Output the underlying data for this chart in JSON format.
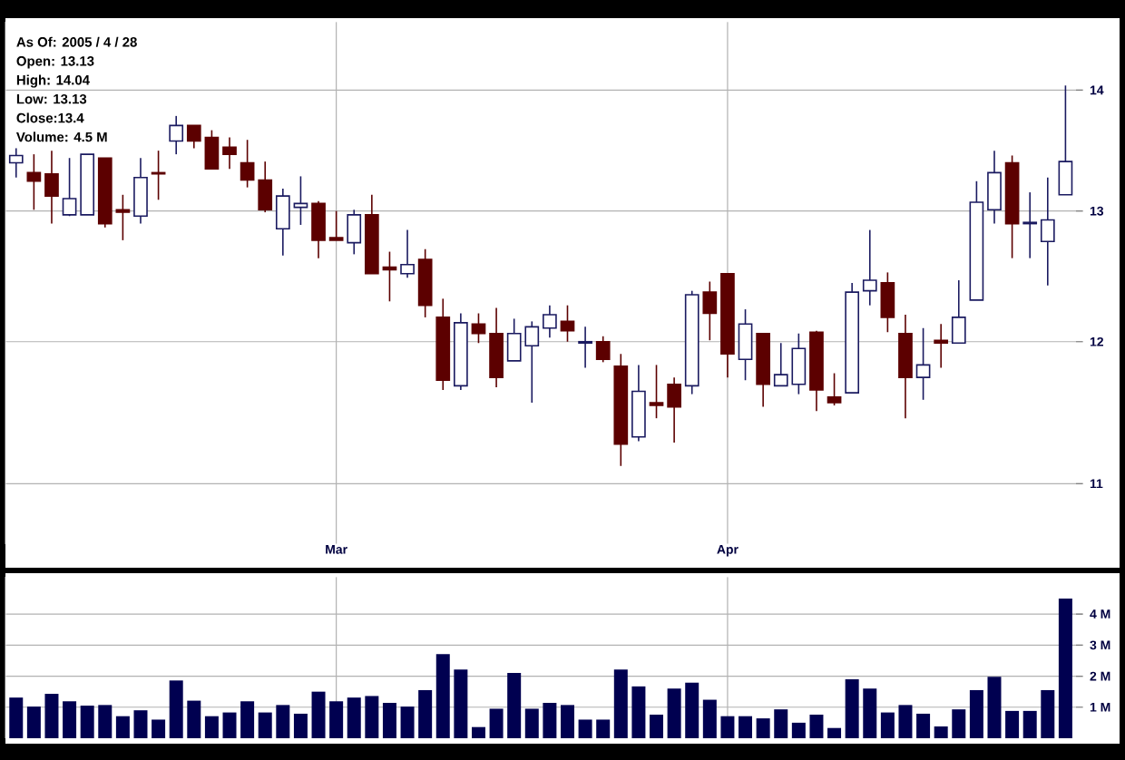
{
  "chart_data": [
    {
      "type": "candlestick",
      "log": true,
      "grid": true,
      "annotations": [
        "As Of: 2005 / 4 / 28",
        "Open: 13.13",
        "High: 14.04",
        "Low: 13.13",
        "Close:13.4",
        "Volume: 4.5 M"
      ],
      "categories": [
        null,
        null,
        null,
        null,
        null,
        null,
        null,
        null,
        null,
        null,
        null,
        null,
        null,
        null,
        null,
        null,
        null,
        null,
        "Mar",
        null,
        null,
        null,
        null,
        null,
        null,
        null,
        null,
        null,
        null,
        null,
        null,
        null,
        null,
        null,
        null,
        null,
        null,
        null,
        null,
        null,
        "Apr",
        null,
        null,
        null,
        null,
        null,
        null,
        null,
        null,
        null,
        null,
        null,
        null,
        null,
        null,
        null,
        null,
        null,
        null,
        null
      ],
      "ohlc": [
        [
          13.39,
          13.51,
          13.27,
          13.45
        ],
        [
          13.31,
          13.46,
          13.01,
          13.24
        ],
        [
          13.3,
          13.49,
          12.9,
          13.12
        ],
        [
          12.97,
          13.43,
          12.96,
          13.1
        ],
        [
          12.97,
          13.46,
          12.97,
          13.46
        ],
        [
          13.43,
          13.43,
          12.87,
          12.9
        ],
        [
          13.01,
          13.13,
          12.77,
          12.99
        ],
        [
          12.96,
          13.43,
          12.9,
          13.27
        ],
        [
          13.31,
          13.49,
          13.09,
          13.3
        ],
        [
          13.57,
          13.78,
          13.46,
          13.7
        ],
        [
          13.7,
          13.7,
          13.51,
          13.57
        ],
        [
          13.6,
          13.66,
          13.34,
          13.34
        ],
        [
          13.52,
          13.6,
          13.34,
          13.46
        ],
        [
          13.39,
          13.58,
          13.19,
          13.25
        ],
        [
          13.25,
          13.4,
          12.99,
          13.01
        ],
        [
          12.86,
          13.18,
          12.65,
          13.12
        ],
        [
          13.03,
          13.28,
          12.89,
          13.06
        ],
        [
          13.06,
          13.08,
          12.63,
          12.77
        ],
        [
          12.79,
          13.0,
          12.77,
          12.77
        ],
        [
          12.75,
          13.01,
          12.66,
          12.97
        ],
        [
          12.97,
          13.13,
          12.51,
          12.51
        ],
        [
          12.56,
          12.68,
          12.3,
          12.54
        ],
        [
          12.51,
          12.85,
          12.48,
          12.58
        ],
        [
          12.62,
          12.7,
          12.18,
          12.27
        ],
        [
          12.18,
          12.32,
          11.65,
          11.72
        ],
        [
          11.68,
          12.21,
          11.65,
          12.14
        ],
        [
          12.13,
          12.21,
          11.99,
          12.06
        ],
        [
          12.06,
          12.25,
          11.67,
          11.74
        ],
        [
          11.86,
          12.17,
          11.86,
          12.06
        ],
        [
          11.97,
          12.15,
          11.56,
          12.11
        ],
        [
          12.1,
          12.27,
          12.03,
          12.2
        ],
        [
          12.15,
          12.27,
          12.0,
          12.08
        ],
        [
          11.99,
          12.11,
          11.81,
          12.0
        ],
        [
          12.0,
          12.04,
          11.85,
          11.87
        ],
        [
          11.82,
          11.91,
          11.12,
          11.27
        ],
        [
          11.32,
          11.83,
          11.29,
          11.64
        ],
        [
          11.56,
          11.83,
          11.45,
          11.54
        ],
        [
          11.69,
          11.74,
          11.28,
          11.53
        ],
        [
          11.68,
          12.38,
          11.62,
          12.35
        ],
        [
          12.37,
          12.45,
          12.01,
          12.21
        ],
        [
          12.51,
          12.51,
          11.74,
          11.91
        ],
        [
          11.87,
          12.24,
          11.72,
          12.13
        ],
        [
          12.06,
          12.06,
          11.53,
          11.69
        ],
        [
          11.68,
          11.99,
          11.68,
          11.76
        ],
        [
          11.69,
          12.06,
          11.62,
          11.95
        ],
        [
          12.07,
          12.08,
          11.5,
          11.65
        ],
        [
          11.6,
          11.77,
          11.54,
          11.56
        ],
        [
          11.63,
          12.44,
          11.63,
          12.37
        ],
        [
          12.38,
          12.85,
          12.27,
          12.46
        ],
        [
          12.44,
          12.52,
          12.07,
          12.18
        ],
        [
          12.06,
          12.2,
          11.45,
          11.74
        ],
        [
          11.74,
          12.1,
          11.58,
          11.83
        ],
        [
          12.01,
          12.13,
          11.81,
          11.99
        ],
        [
          11.99,
          12.46,
          11.99,
          12.18
        ],
        [
          12.31,
          13.24,
          12.31,
          13.07
        ],
        [
          13.01,
          13.49,
          12.9,
          13.31
        ],
        [
          13.39,
          13.45,
          12.63,
          12.9
        ],
        [
          12.9,
          13.15,
          12.63,
          12.91
        ],
        [
          12.76,
          13.27,
          12.42,
          12.93
        ],
        [
          13.13,
          14.04,
          13.13,
          13.4
        ]
      ],
      "ylim": [
        10.6,
        14.6
      ],
      "yticks": [
        11,
        12,
        13,
        14
      ]
    },
    {
      "type": "bar",
      "grid": true,
      "color": "#000050",
      "categories": [
        null,
        null,
        null,
        null,
        null,
        null,
        null,
        null,
        null,
        null,
        null,
        null,
        null,
        null,
        null,
        null,
        null,
        null,
        null,
        null,
        null,
        null,
        null,
        null,
        null,
        null,
        null,
        null,
        null,
        null,
        null,
        null,
        null,
        null,
        null,
        null,
        null,
        null,
        null,
        null,
        null,
        null,
        null,
        null,
        null,
        null,
        null,
        null,
        null,
        null,
        null,
        null,
        null,
        null,
        null,
        null,
        null,
        null,
        null,
        null
      ],
      "values": [
        1.31,
        1.02,
        1.43,
        1.19,
        1.05,
        1.07,
        0.71,
        0.9,
        0.6,
        1.86,
        1.21,
        0.71,
        0.83,
        1.19,
        0.83,
        1.07,
        0.79,
        1.5,
        1.19,
        1.31,
        1.36,
        1.14,
        1.02,
        1.55,
        2.71,
        2.21,
        0.36,
        0.95,
        2.1,
        0.95,
        1.14,
        1.07,
        0.6,
        0.6,
        2.21,
        1.67,
        0.76,
        1.6,
        1.79,
        1.24,
        0.71,
        0.71,
        0.64,
        0.93,
        0.5,
        0.76,
        0.33,
        1.9,
        1.6,
        0.83,
        1.07,
        0.79,
        0.38,
        0.93,
        1.55,
        1.98,
        0.88,
        0.88,
        1.55,
        4.5
      ],
      "ylim": [
        0,
        5.2
      ],
      "yticks": [
        {
          "value": 1,
          "label": "1 M"
        },
        {
          "value": 2,
          "label": "2 M"
        },
        {
          "value": 3,
          "label": "3 M"
        },
        {
          "value": 4,
          "label": "4 M"
        }
      ]
    }
  ]
}
